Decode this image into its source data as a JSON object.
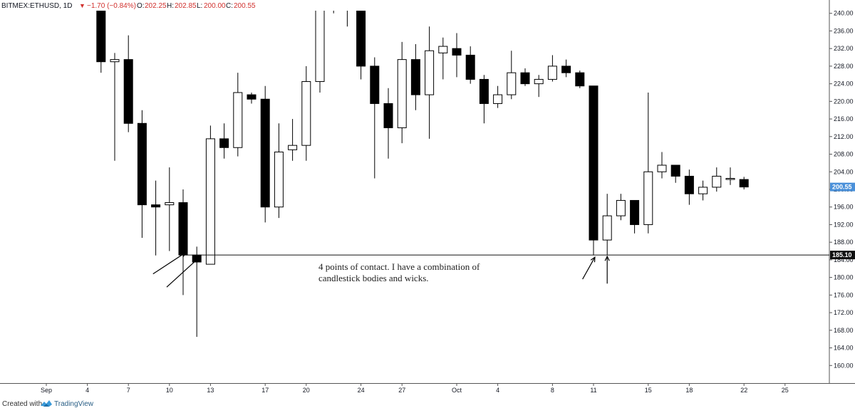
{
  "header": {
    "symbol": "BITMEX:ETHUSD, 1D",
    "change": "−1.70 (−0.84%)",
    "open_label": "O:",
    "open": "202.25",
    "high_label": "H:",
    "high": "202.85",
    "low_label": "L:",
    "low": "200.00",
    "close_label": "C:",
    "close": "200.55"
  },
  "footer": {
    "created_with": "Created with",
    "brand": "TradingView"
  },
  "colors": {
    "up_body": "#ffffff",
    "down_body": "#000000",
    "wick": "#000000",
    "last_price_tag": "#4a90d9",
    "support_tag": "#111111",
    "down_text": "#d1312e"
  },
  "chart_data": {
    "type": "candlestick",
    "y_axis": {
      "min": 156,
      "max": 240.6,
      "ticks": [
        "240.00",
        "236.00",
        "232.00",
        "228.00",
        "224.00",
        "220.00",
        "216.00",
        "212.00",
        "208.00",
        "204.00",
        "200.00",
        "196.00",
        "192.00",
        "188.00",
        "184.00",
        "180.00",
        "176.00",
        "172.00",
        "168.00",
        "164.00",
        "160.00"
      ],
      "position": "right"
    },
    "x_axis": {
      "labels": [
        {
          "label": "Sep",
          "day": 0
        },
        {
          "label": "4",
          "day": 3
        },
        {
          "label": "7",
          "day": 6
        },
        {
          "label": "10",
          "day": 9
        },
        {
          "label": "13",
          "day": 12
        },
        {
          "label": "17",
          "day": 16
        },
        {
          "label": "20",
          "day": 19
        },
        {
          "label": "24",
          "day": 23
        },
        {
          "label": "27",
          "day": 26
        },
        {
          "label": "Oct",
          "day": 30
        },
        {
          "label": "4",
          "day": 33
        },
        {
          "label": "8",
          "day": 37
        },
        {
          "label": "11",
          "day": 40
        },
        {
          "label": "15",
          "day": 44
        },
        {
          "label": "18",
          "day": 47
        },
        {
          "label": "22",
          "day": 51
        },
        {
          "label": "25",
          "day": 54
        }
      ]
    },
    "candles": [
      {
        "day": 4,
        "o": 241,
        "h": 245,
        "l": 226.5,
        "c": 229
      },
      {
        "day": 5,
        "o": 229,
        "h": 231,
        "l": 206.5,
        "c": 229.5
      },
      {
        "day": 6,
        "o": 229.5,
        "h": 235,
        "l": 213,
        "c": 215
      },
      {
        "day": 7,
        "o": 215,
        "h": 218,
        "l": 189,
        "c": 196.5
      },
      {
        "day": 8,
        "o": 196.5,
        "h": 202,
        "l": 185,
        "c": 196
      },
      {
        "day": 9,
        "o": 196.5,
        "h": 205,
        "l": 186,
        "c": 197
      },
      {
        "day": 10,
        "o": 197,
        "h": 200,
        "l": 176,
        "c": 185.1
      },
      {
        "day": 11,
        "o": 185.1,
        "h": 187,
        "l": 166.5,
        "c": 183.5
      },
      {
        "day": 12,
        "o": 183,
        "h": 214.5,
        "l": 183,
        "c": 211.5
      },
      {
        "day": 13,
        "o": 211.5,
        "h": 215,
        "l": 207,
        "c": 209.5
      },
      {
        "day": 14,
        "o": 209.5,
        "h": 226.5,
        "l": 207.5,
        "c": 222
      },
      {
        "day": 15,
        "o": 221.5,
        "h": 222,
        "l": 219.5,
        "c": 220.5
      },
      {
        "day": 16,
        "o": 220.5,
        "h": 223.5,
        "l": 192.5,
        "c": 196
      },
      {
        "day": 17,
        "o": 196,
        "h": 215,
        "l": 193.5,
        "c": 208.5
      },
      {
        "day": 18,
        "o": 209,
        "h": 216,
        "l": 206.5,
        "c": 210
      },
      {
        "day": 19,
        "o": 210,
        "h": 228,
        "l": 206.5,
        "c": 224.5
      },
      {
        "day": 20,
        "o": 224.5,
        "h": 255,
        "l": 222,
        "c": 250
      },
      {
        "day": 21,
        "o": 250,
        "h": 258,
        "l": 240,
        "c": 248
      },
      {
        "day": 22,
        "o": 248,
        "h": 255,
        "l": 237,
        "c": 245
      },
      {
        "day": 23,
        "o": 243,
        "h": 246,
        "l": 225,
        "c": 228
      },
      {
        "day": 24,
        "o": 228,
        "h": 230,
        "l": 202.5,
        "c": 219.5
      },
      {
        "day": 25,
        "o": 219.5,
        "h": 223,
        "l": 207,
        "c": 214
      },
      {
        "day": 26,
        "o": 214,
        "h": 233.5,
        "l": 210.5,
        "c": 229.5
      },
      {
        "day": 27,
        "o": 229.5,
        "h": 233,
        "l": 218,
        "c": 221.5
      },
      {
        "day": 28,
        "o": 221.5,
        "h": 237,
        "l": 211.5,
        "c": 231.5
      },
      {
        "day": 29,
        "o": 231,
        "h": 234.5,
        "l": 225,
        "c": 232.5
      },
      {
        "day": 30,
        "o": 232,
        "h": 235.5,
        "l": 225.5,
        "c": 230.5
      },
      {
        "day": 31,
        "o": 230.5,
        "h": 232.5,
        "l": 224,
        "c": 225
      },
      {
        "day": 32,
        "o": 225,
        "h": 226,
        "l": 215,
        "c": 219.5
      },
      {
        "day": 33,
        "o": 219.5,
        "h": 223.5,
        "l": 218.5,
        "c": 221.5
      },
      {
        "day": 34,
        "o": 221.5,
        "h": 231.5,
        "l": 220.5,
        "c": 226.5
      },
      {
        "day": 35,
        "o": 226.5,
        "h": 227.5,
        "l": 223.5,
        "c": 224
      },
      {
        "day": 36,
        "o": 224,
        "h": 226,
        "l": 221,
        "c": 225
      },
      {
        "day": 37,
        "o": 225,
        "h": 230.5,
        "l": 224.5,
        "c": 228
      },
      {
        "day": 38,
        "o": 228,
        "h": 229.5,
        "l": 225.5,
        "c": 226.5
      },
      {
        "day": 39,
        "o": 226.5,
        "h": 227,
        "l": 223,
        "c": 223.5
      },
      {
        "day": 40,
        "o": 223.5,
        "h": 223.5,
        "l": 185.1,
        "c": 188.5
      },
      {
        "day": 41,
        "o": 188.5,
        "h": 199,
        "l": 185.1,
        "c": 194
      },
      {
        "day": 42,
        "o": 194,
        "h": 199,
        "l": 193,
        "c": 197.5
      },
      {
        "day": 43,
        "o": 197.5,
        "h": 197.5,
        "l": 190,
        "c": 192
      },
      {
        "day": 44,
        "o": 192,
        "h": 222,
        "l": 190,
        "c": 204
      },
      {
        "day": 45,
        "o": 204,
        "h": 208.5,
        "l": 202.5,
        "c": 205.5
      },
      {
        "day": 46,
        "o": 205.5,
        "h": 205.5,
        "l": 201.5,
        "c": 203
      },
      {
        "day": 47,
        "o": 203,
        "h": 204.5,
        "l": 196.5,
        "c": 199
      },
      {
        "day": 48,
        "o": 199,
        "h": 202,
        "l": 197.5,
        "c": 200.5
      },
      {
        "day": 49,
        "o": 200.5,
        "h": 205,
        "l": 199.5,
        "c": 203
      },
      {
        "day": 50,
        "o": 202.5,
        "h": 205,
        "l": 201,
        "c": 202.5
      },
      {
        "day": 51,
        "o": 202.25,
        "h": 202.85,
        "l": 200,
        "c": 200.55
      }
    ],
    "support_level": {
      "price": 185.1,
      "label": "185.10"
    },
    "last_price": {
      "price": 200.55,
      "label": "200.55"
    },
    "annotation": {
      "line1": "4 points of contact. I have a combination of",
      "line2": "candlestick bodies and wicks."
    },
    "arrows": [
      {
        "from_day": 7.8,
        "from_price": 180.8,
        "to_day": 10.2,
        "to_price": 185.7
      },
      {
        "from_day": 8.8,
        "from_price": 177.8,
        "to_day": 11.2,
        "to_price": 184.6
      },
      {
        "from_day": 39.2,
        "from_price": 179.6,
        "to_day": 40.1,
        "to_price": 184.6
      },
      {
        "from_day": 41,
        "from_price": 178.6,
        "to_day": 41,
        "to_price": 184.8
      }
    ]
  }
}
